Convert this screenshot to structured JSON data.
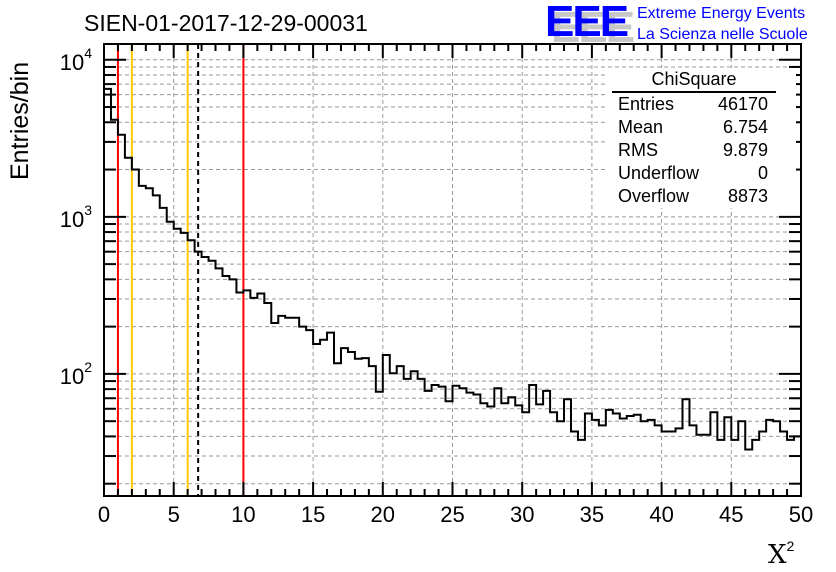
{
  "title": "SIEN-01-2017-12-29-00031",
  "logo": {
    "mark": "EEE",
    "line1": "Extreme Energy Events",
    "line2": "La Scienza nelle Scuole"
  },
  "stats": {
    "name": "ChiSquare",
    "rows": [
      {
        "label": "Entries",
        "value": "46170"
      },
      {
        "label": "Mean",
        "value": "6.754"
      },
      {
        "label": "RMS",
        "value": "9.879"
      },
      {
        "label": "Underflow",
        "value": "0"
      },
      {
        "label": "Overflow",
        "value": "8873"
      }
    ]
  },
  "chart_data": {
    "type": "bar",
    "style": "step-histogram",
    "title": "SIEN-01-2017-12-29-00031",
    "xlabel": "X",
    "xlabel_sup": "2",
    "ylabel": "Entries/bin",
    "xlim": [
      0,
      50
    ],
    "ylim": [
      16.7,
      12600
    ],
    "yscale": "log",
    "grid": true,
    "bin_width": 0.5,
    "x_ticks": [
      "0",
      "5",
      "10",
      "15",
      "20",
      "25",
      "30",
      "35",
      "40",
      "45",
      "50"
    ],
    "y_ticks": [
      {
        "base": "10",
        "exp": "4",
        "value": 10000
      },
      {
        "base": "10",
        "exp": "3",
        "value": 1000
      },
      {
        "base": "10",
        "exp": "2",
        "value": 100
      }
    ],
    "values": [
      6530,
      4150,
      3330,
      2380,
      2000,
      1575,
      1520,
      1370,
      1140,
      930,
      840,
      790,
      710,
      600,
      555,
      525,
      470,
      420,
      400,
      330,
      340,
      305,
      325,
      283,
      211,
      234,
      228,
      228,
      200,
      190,
      155,
      165,
      183,
      117,
      146,
      138,
      125,
      126,
      112,
      77,
      132,
      101,
      112,
      93,
      104,
      93,
      78,
      85,
      83,
      67,
      84,
      81,
      76,
      74,
      65,
      62,
      81,
      65,
      71,
      63,
      57,
      85,
      64,
      78,
      57,
      50,
      69,
      43,
      38,
      56,
      51,
      47,
      59,
      56,
      52,
      54,
      55,
      50,
      51,
      47,
      43,
      43,
      45,
      69,
      47,
      41,
      41,
      57,
      38,
      53,
      38,
      50,
      33,
      38,
      43,
      51,
      50,
      43,
      38,
      40
    ],
    "vlines": [
      {
        "x": 1,
        "color": "#ff0000",
        "style": "solid"
      },
      {
        "x": 2,
        "color": "#ffcc00",
        "style": "solid"
      },
      {
        "x": 6,
        "color": "#ffcc00",
        "style": "solid"
      },
      {
        "x": 6.754,
        "color": "#000000",
        "style": "dashed"
      },
      {
        "x": 10,
        "color": "#ff0000",
        "style": "solid"
      }
    ]
  }
}
